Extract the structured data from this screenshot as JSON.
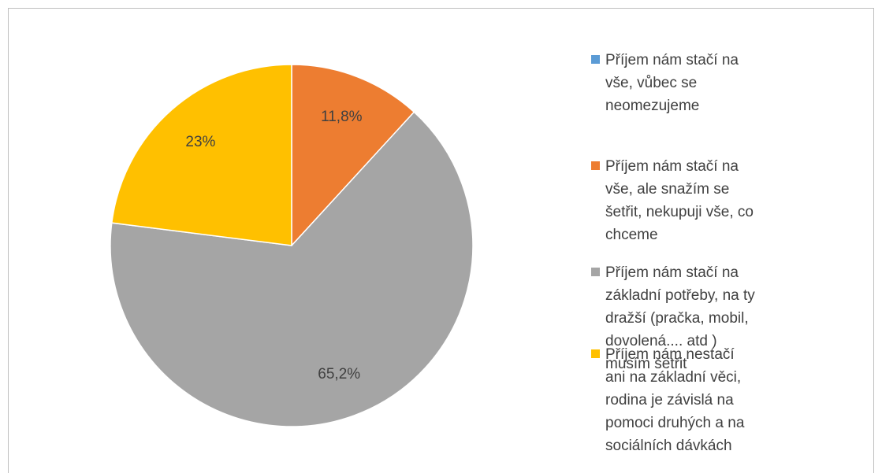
{
  "chart_data": {
    "type": "pie",
    "categories": [
      "Příjem nám stačí na vše, vůbec se neomezujeme",
      "Příjem nám stačí na vše, ale snažím se šetřit, nekupuji vše, co chceme",
      "Příjem nám stačí na základní potřeby, na ty dražší (pračka, mobil, dovolená.... atd ) musím šetřit",
      "Příjem nám nestačí ani na základní věci, rodina je závislá na pomoci druhých a na sociálních dávkách"
    ],
    "values": [
      0,
      11.8,
      65.2,
      23
    ],
    "value_labels": [
      null,
      "11,8%",
      "65,2%",
      "23%"
    ],
    "colors": [
      "#5b9bd5",
      "#ed7d31",
      "#a5a5a5",
      "#ffc000"
    ],
    "legend": "right"
  }
}
